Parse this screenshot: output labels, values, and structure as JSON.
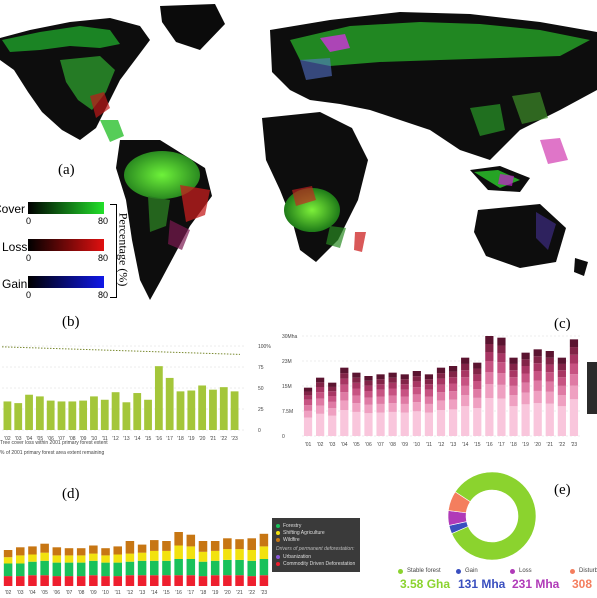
{
  "panels": {
    "a": "(a)",
    "b": "(b)",
    "c": "(c)",
    "d": "(d)",
    "e": "(e)"
  },
  "map_legend": {
    "rows": [
      {
        "label": "Cover",
        "min": "0",
        "max": "80",
        "color": "#22e02a"
      },
      {
        "label": "Loss",
        "min": "0",
        "max": "80",
        "color": "#e01010"
      },
      {
        "label": "Gain",
        "min": "0",
        "max": "80",
        "color": "#1018e8"
      }
    ],
    "axis_label": "Percentage (%)"
  },
  "chart_data": [
    {
      "type": "bar",
      "panel": "b",
      "categories": [
        "'02",
        "'03",
        "'04",
        "'05",
        "'06",
        "'07",
        "'08",
        "'09",
        "'10",
        "'11",
        "'12",
        "'13",
        "'14",
        "'15",
        "'16",
        "'17",
        "'18",
        "'19",
        "'20",
        "'21",
        "'22",
        "'23"
      ],
      "values": [
        34,
        32,
        42,
        40,
        35,
        34,
        34,
        35,
        40,
        36,
        45,
        33,
        44,
        36,
        76,
        62,
        46,
        47,
        53,
        48,
        51,
        46
      ],
      "line": {
        "start": 99,
        "end": 90
      },
      "ytick_labels": [
        "100%",
        "75",
        "50",
        "25",
        "0"
      ],
      "ylim": [
        0,
        100
      ],
      "legend": [
        "Tree cover loss within 2001 primary forest extent",
        "% of 2001 primary forest area extent remaining"
      ]
    },
    {
      "type": "bar",
      "panel": "c",
      "categories": [
        "'01",
        "'02",
        "'03",
        "'04",
        "'05",
        "'06",
        "'07",
        "'08",
        "'09",
        "'10",
        "'11",
        "'12",
        "'13",
        "'14",
        "'15",
        "'16",
        "'17",
        "'18",
        "'19",
        "'20",
        "'21",
        "'22",
        "'23"
      ],
      "totals": [
        14.5,
        17.5,
        16,
        20.5,
        19,
        18,
        18.5,
        19,
        18.5,
        19.5,
        18.5,
        20.5,
        21,
        23.5,
        22,
        30,
        29.5,
        23.5,
        25,
        26,
        25.5,
        23.5,
        29
      ],
      "ytick_labels": [
        "30Mha",
        "23M",
        "15M",
        "7.5M",
        "0"
      ],
      "ylim": [
        0,
        30
      ]
    },
    {
      "type": "bar",
      "panel": "d",
      "categories": [
        "'02",
        "'03",
        "'04",
        "'05",
        "'06",
        "'07",
        "'08",
        "'09",
        "'10",
        "'11",
        "'12",
        "'13",
        "'14",
        "'15",
        "'16",
        "'17",
        "'18",
        "'19",
        "'20",
        "'21",
        "'22",
        "'23"
      ],
      "series": [
        {
          "name": "Commodity Driven Deforestation",
          "color": "#ee1f2e",
          "values": [
            11,
            11,
            12,
            12,
            11,
            11,
            11,
            12,
            11,
            11,
            12,
            12,
            12,
            12,
            12,
            12,
            11,
            12,
            12,
            12,
            11,
            12
          ]
        },
        {
          "name": "Forestry",
          "color": "#19c15a",
          "values": [
            14,
            14,
            15,
            16,
            15,
            15,
            15,
            16,
            15,
            15,
            15,
            16,
            16,
            16,
            18,
            18,
            16,
            16,
            17,
            17,
            17,
            18
          ]
        },
        {
          "name": "Shifting Agriculture",
          "color": "#f2e20f",
          "values": [
            7,
            9,
            8,
            9,
            8,
            8,
            8,
            8,
            8,
            9,
            9,
            9,
            11,
            11,
            15,
            14,
            11,
            11,
            12,
            12,
            12,
            14
          ]
        },
        {
          "name": "Wildfire",
          "color": "#c77613",
          "values": [
            8,
            9,
            9,
            10,
            9,
            8,
            8,
            9,
            8,
            9,
            14,
            9,
            12,
            11,
            15,
            13,
            12,
            11,
            12,
            11,
            13,
            14
          ]
        }
      ],
      "legend": {
        "items": [
          {
            "label": "Forestry",
            "color": "#19c15a"
          },
          {
            "label": "Shifting Agriculture",
            "color": "#f2e20f"
          },
          {
            "label": "Wildfire",
            "color": "#c77613"
          }
        ],
        "section_title": "Drivers of permanent deforestation:",
        "items2": [
          {
            "label": "Urbanization",
            "color": "#8a58d8"
          },
          {
            "label": "Commodity Driven Deforestation",
            "color": "#ee1f2e"
          }
        ]
      }
    },
    {
      "type": "pie",
      "panel": "e",
      "slices": [
        {
          "name": "Stable forest",
          "value": 3580,
          "color": "#8bd32e",
          "label_value": "3.58 Gha"
        },
        {
          "name": "Gain",
          "value": 131,
          "color": "#3a4fbf",
          "label_value": "131 Mha"
        },
        {
          "name": "Loss",
          "value": 231,
          "color": "#b03ab8",
          "label_value": "231 Mha"
        },
        {
          "name": "Disturb",
          "value": 308,
          "color": "#f47e5e",
          "label_value": "308"
        }
      ]
    }
  ]
}
